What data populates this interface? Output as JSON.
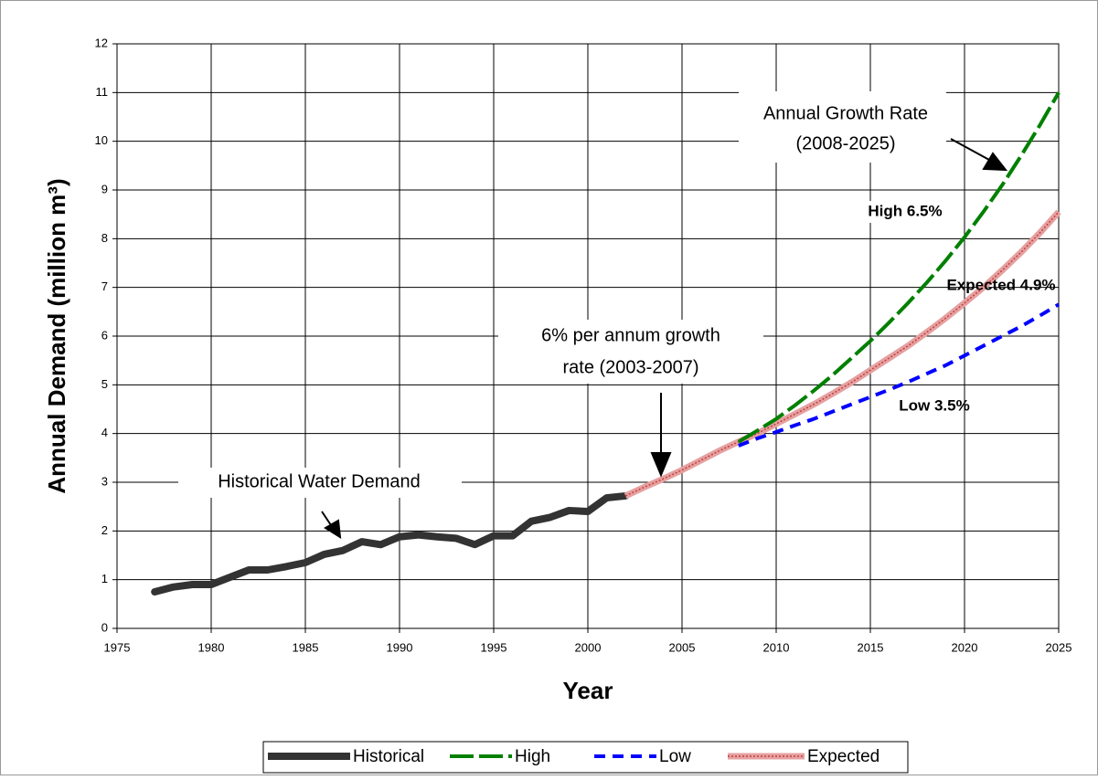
{
  "chart_data": {
    "type": "line",
    "xlabel": "Year",
    "ylabel": "Annual Demand (million m³)",
    "xlim": [
      1975,
      2025
    ],
    "xticks": [
      1975,
      1980,
      1985,
      1990,
      1995,
      2000,
      2005,
      2010,
      2015,
      2020,
      2025
    ],
    "ylim": [
      0,
      12
    ],
    "yticks": [
      0,
      1,
      2,
      3,
      4,
      5,
      6,
      7,
      8,
      9,
      10,
      11,
      12
    ],
    "grid": true,
    "legend": "bottom",
    "series": [
      {
        "name": "Historical",
        "color": "#333333",
        "dash": "solid",
        "x": [
          1977,
          1978,
          1979,
          1980,
          1981,
          1982,
          1983,
          1984,
          1985,
          1986,
          1987,
          1988,
          1989,
          1990,
          1991,
          1992,
          1993,
          1994,
          1995,
          1996,
          1997,
          1998,
          1999,
          2000,
          2001,
          2002
        ],
        "values": [
          0.75,
          0.85,
          0.9,
          0.9,
          1.05,
          1.2,
          1.2,
          1.27,
          1.35,
          1.52,
          1.6,
          1.78,
          1.72,
          1.88,
          1.92,
          1.88,
          1.85,
          1.72,
          1.9,
          1.9,
          2.2,
          2.28,
          2.42,
          2.4,
          2.68,
          2.72
        ]
      },
      {
        "name": "High",
        "color": "#008000",
        "dash": "long",
        "x": [
          2008,
          2009,
          2010,
          2011,
          2012,
          2013,
          2014,
          2015,
          2016,
          2017,
          2018,
          2019,
          2020,
          2021,
          2022,
          2023,
          2024,
          2025
        ],
        "values": [
          3.83,
          4.06,
          4.3,
          4.58,
          4.88,
          5.2,
          5.55,
          5.9,
          6.28,
          6.68,
          7.1,
          7.55,
          8.03,
          8.55,
          9.1,
          9.7,
          10.33,
          11.0
        ]
      },
      {
        "name": "Low",
        "color": "#0000ff",
        "dash": "short",
        "x": [
          2008,
          2009,
          2010,
          2011,
          2012,
          2013,
          2014,
          2015,
          2016,
          2017,
          2018,
          2019,
          2020,
          2021,
          2022,
          2023,
          2024,
          2025
        ],
        "values": [
          3.75,
          3.9,
          4.03,
          4.17,
          4.3,
          4.45,
          4.6,
          4.75,
          4.9,
          5.06,
          5.23,
          5.4,
          5.6,
          5.8,
          6.0,
          6.2,
          6.42,
          6.65
        ]
      },
      {
        "name": "Expected",
        "color": "#e6a0a0",
        "dash": "hatched",
        "x": [
          2002,
          2003,
          2004,
          2005,
          2006,
          2007,
          2008,
          2009,
          2010,
          2011,
          2012,
          2013,
          2014,
          2015,
          2016,
          2017,
          2018,
          2019,
          2020,
          2021,
          2022,
          2023,
          2024,
          2025
        ],
        "values": [
          2.72,
          2.9,
          3.07,
          3.25,
          3.45,
          3.65,
          3.83,
          4.0,
          4.2,
          4.4,
          4.6,
          4.82,
          5.05,
          5.3,
          5.55,
          5.8,
          6.08,
          6.37,
          6.68,
          7.0,
          7.35,
          7.72,
          8.12,
          8.55
        ]
      }
    ],
    "annotations": [
      {
        "lines": [
          "Historical Water Demand"
        ]
      },
      {
        "lines": [
          "6%  per annum growth",
          "rate (2003-2007)"
        ]
      },
      {
        "lines": [
          "Annual Growth Rate",
          "(2008-2025)"
        ]
      },
      {
        "lines": [
          "High 6.5%"
        ]
      },
      {
        "lines": [
          "Expected 4.9%"
        ]
      },
      {
        "lines": [
          "Low 3.5%"
        ]
      }
    ]
  }
}
